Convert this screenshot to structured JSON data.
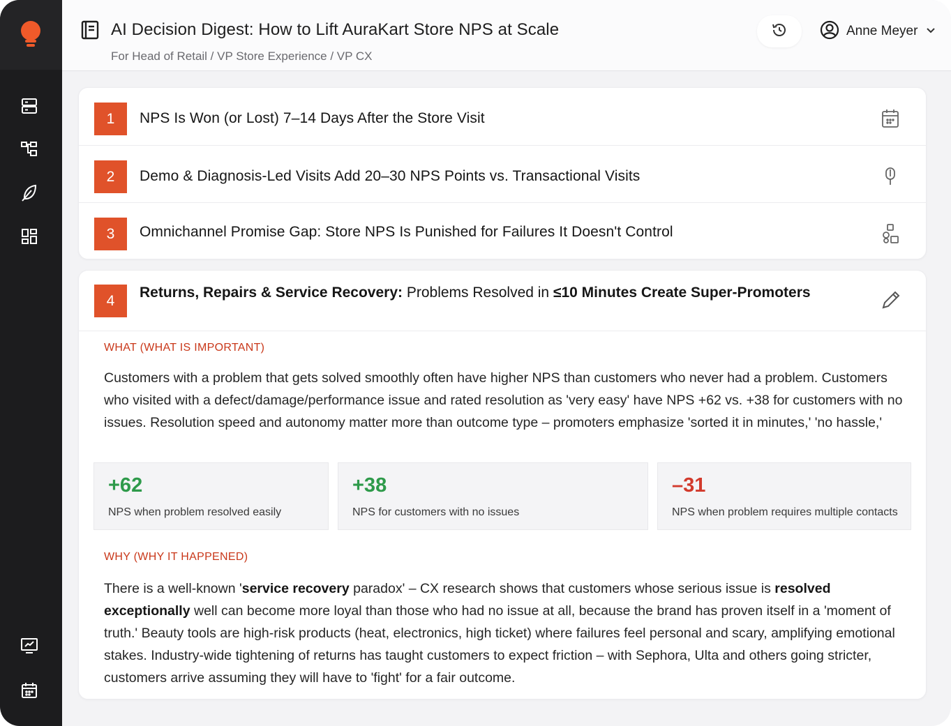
{
  "header": {
    "title": "AI Decision Digest: How to Lift AuraKart Store NPS at Scale",
    "subtitle": "For Head of Retail / VP Store Experience / VP CX",
    "user_name": "Anne Meyer"
  },
  "sidebar": {
    "items": [
      {
        "name": "server-icon"
      },
      {
        "name": "hierarchy-icon"
      },
      {
        "name": "feather-icon"
      },
      {
        "name": "dashboard-grid-icon"
      },
      {
        "name": "presentation-icon"
      },
      {
        "name": "calendar-icon"
      }
    ]
  },
  "insights": [
    {
      "number": "1",
      "title": "NPS Is Won (or Lost) 7–14 Days After the Store Visit",
      "icon": "calendar-icon"
    },
    {
      "number": "2",
      "title": "Demo & Diagnosis-Led Visits Add 20–30 NPS Points vs. Transactional Visits",
      "icon": "microphone-icon"
    },
    {
      "number": "3",
      "title": "Omnichannel Promise Gap: Store NPS Is Punished for Failures It Doesn't Control",
      "icon": "shapes-icon"
    }
  ],
  "expanded": {
    "number": "4",
    "title_bold_1": "Returns, Repairs & Service Recovery:",
    "title_normal": " Problems Resolved in ",
    "title_bold_2": "≤10 Minutes Create Super-Promoters",
    "icon": "pencil-icon",
    "what_label": "WHAT (WHAT IS IMPORTANT)",
    "what_text": "Customers with a problem that gets solved smoothly often have higher NPS than customers who never had a problem. Customers who visited with a defect/damage/performance issue and rated resolution as 'very easy' have NPS +62 vs. +38 for customers with no issues. Resolution speed and autonomy matter more than outcome type – promoters emphasize 'sorted it in minutes,' 'no hassle,'",
    "stats": [
      {
        "value": "+62",
        "label": "NPS when problem resolved easily",
        "color": "#2e9a4a"
      },
      {
        "value": "+38",
        "label": "NPS for customers with no issues",
        "color": "#2e9a4a"
      },
      {
        "value": "–31",
        "label": "NPS when problem requires multiple contacts",
        "color": "#d23a2c"
      }
    ],
    "why_label": "WHY (WHY IT HAPPENED)",
    "why_1": "There is a well-known '",
    "why_b1": "service recovery",
    "why_2": " paradox' – CX research shows that customers whose serious issue is ",
    "why_b2": "resolved exceptionally",
    "why_3": " well can become more loyal than those who had no issue at all, because the brand has proven itself in a 'moment of truth.' Beauty tools are high-risk products (heat, electronics, high ticket) where failures feel personal and scary, amplifying emotional stakes. Industry-wide tightening of returns has taught customers to expect friction – with Sephora, Ulta and others going stricter, customers arrive assuming they will have to 'fight' for a fair outcome."
  },
  "colors": {
    "accent": "#e0522a",
    "label": "#c9381a",
    "positive": "#2e9a4a",
    "negative": "#d23a2c",
    "sidebar": "#1c1c1e"
  }
}
